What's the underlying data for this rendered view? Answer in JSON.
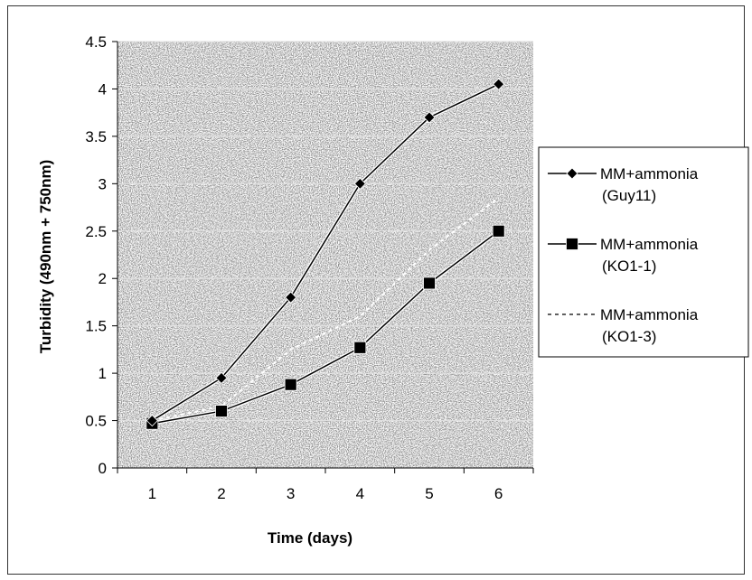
{
  "chart_data": {
    "type": "line",
    "title": "",
    "xlabel": "Time (days)",
    "ylabel": "Turbidity (490nm + 750nm)",
    "x": [
      1,
      2,
      3,
      4,
      5,
      6
    ],
    "xticks": [
      "1",
      "2",
      "3",
      "4",
      "5",
      "6"
    ],
    "ylim": [
      0,
      4.5
    ],
    "yticks": [
      "0",
      "0.5",
      "1",
      "1.5",
      "2",
      "2.5",
      "3",
      "3.5",
      "4",
      "4.5"
    ],
    "grid": "horizontal",
    "legend_position": "right",
    "series": [
      {
        "name_line1": "MM+ammonia",
        "name_line2": "(Guy11)",
        "marker": "diamond",
        "line_style": "solid",
        "values": [
          0.5,
          0.95,
          1.8,
          3.0,
          3.7,
          4.05
        ]
      },
      {
        "name_line1": "MM+ammonia",
        "name_line2": "(KO1-1)",
        "marker": "square",
        "line_style": "solid",
        "values": [
          0.47,
          0.6,
          0.88,
          1.27,
          1.95,
          2.5
        ]
      },
      {
        "name_line1": "MM+ammonia",
        "name_line2": "(KO1-3)",
        "marker": "none",
        "line_style": "dashed",
        "values": [
          0.5,
          0.65,
          1.25,
          1.6,
          2.3,
          2.85
        ]
      }
    ],
    "colors": {
      "line": "#000000",
      "plot_background": "#8a8a8a",
      "grid": "#e0e0e0"
    }
  }
}
